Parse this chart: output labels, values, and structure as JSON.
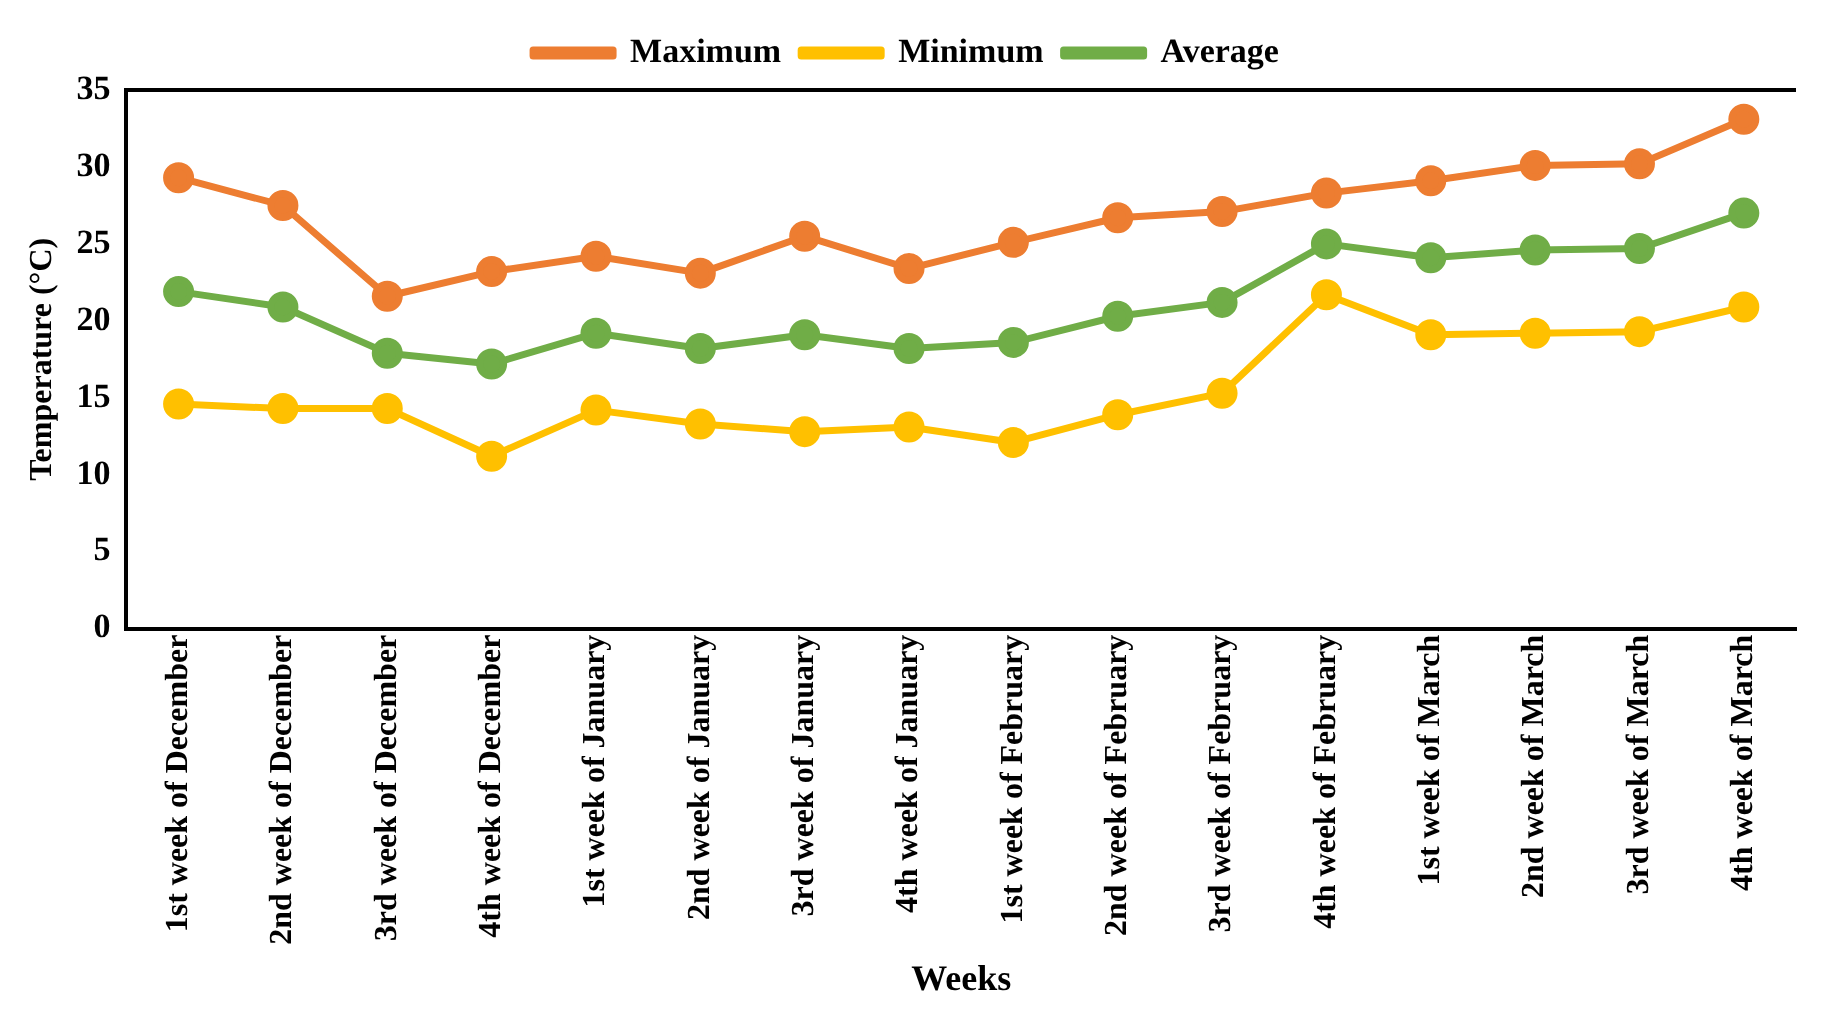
{
  "chart_data": {
    "type": "line",
    "xlabel": "Weeks",
    "ylabel": "Temperature (°C)",
    "categories": [
      "1st week of December",
      "2nd week of December",
      "3rd week of December",
      "4th week of December",
      "1st week of January",
      "2nd week of January",
      "3rd week of January",
      "4th week of January",
      "1st week of February",
      "2nd week of February",
      "3rd week of February",
      "4th week of February",
      "1st week of March",
      "2nd week of March",
      "3rd week of March",
      "4th week of March"
    ],
    "series": [
      {
        "name": "Maximum",
        "color": "#ed7d31",
        "values": [
          29.3,
          27.5,
          21.6,
          23.2,
          24.2,
          23.1,
          25.5,
          23.4,
          25.1,
          26.7,
          27.1,
          28.3,
          29.1,
          30.1,
          30.2,
          33.1
        ]
      },
      {
        "name": "Minimum",
        "color": "#ffc000",
        "values": [
          14.6,
          14.3,
          14.3,
          11.2,
          14.2,
          13.3,
          12.8,
          13.1,
          12.1,
          13.9,
          15.3,
          21.7,
          19.1,
          19.2,
          19.3,
          20.9
        ]
      },
      {
        "name": "Average",
        "color": "#70ad47",
        "values": [
          21.9,
          20.9,
          17.9,
          17.2,
          19.2,
          18.2,
          19.1,
          18.2,
          18.6,
          20.3,
          21.2,
          25.0,
          24.1,
          24.6,
          24.7,
          27.0
        ]
      }
    ],
    "ylim": [
      0,
      35
    ],
    "yticks": [
      0,
      5,
      10,
      15,
      20,
      25,
      30,
      35
    ],
    "grid": false,
    "legend": "top",
    "marker": "circle",
    "line_style": "solid"
  }
}
